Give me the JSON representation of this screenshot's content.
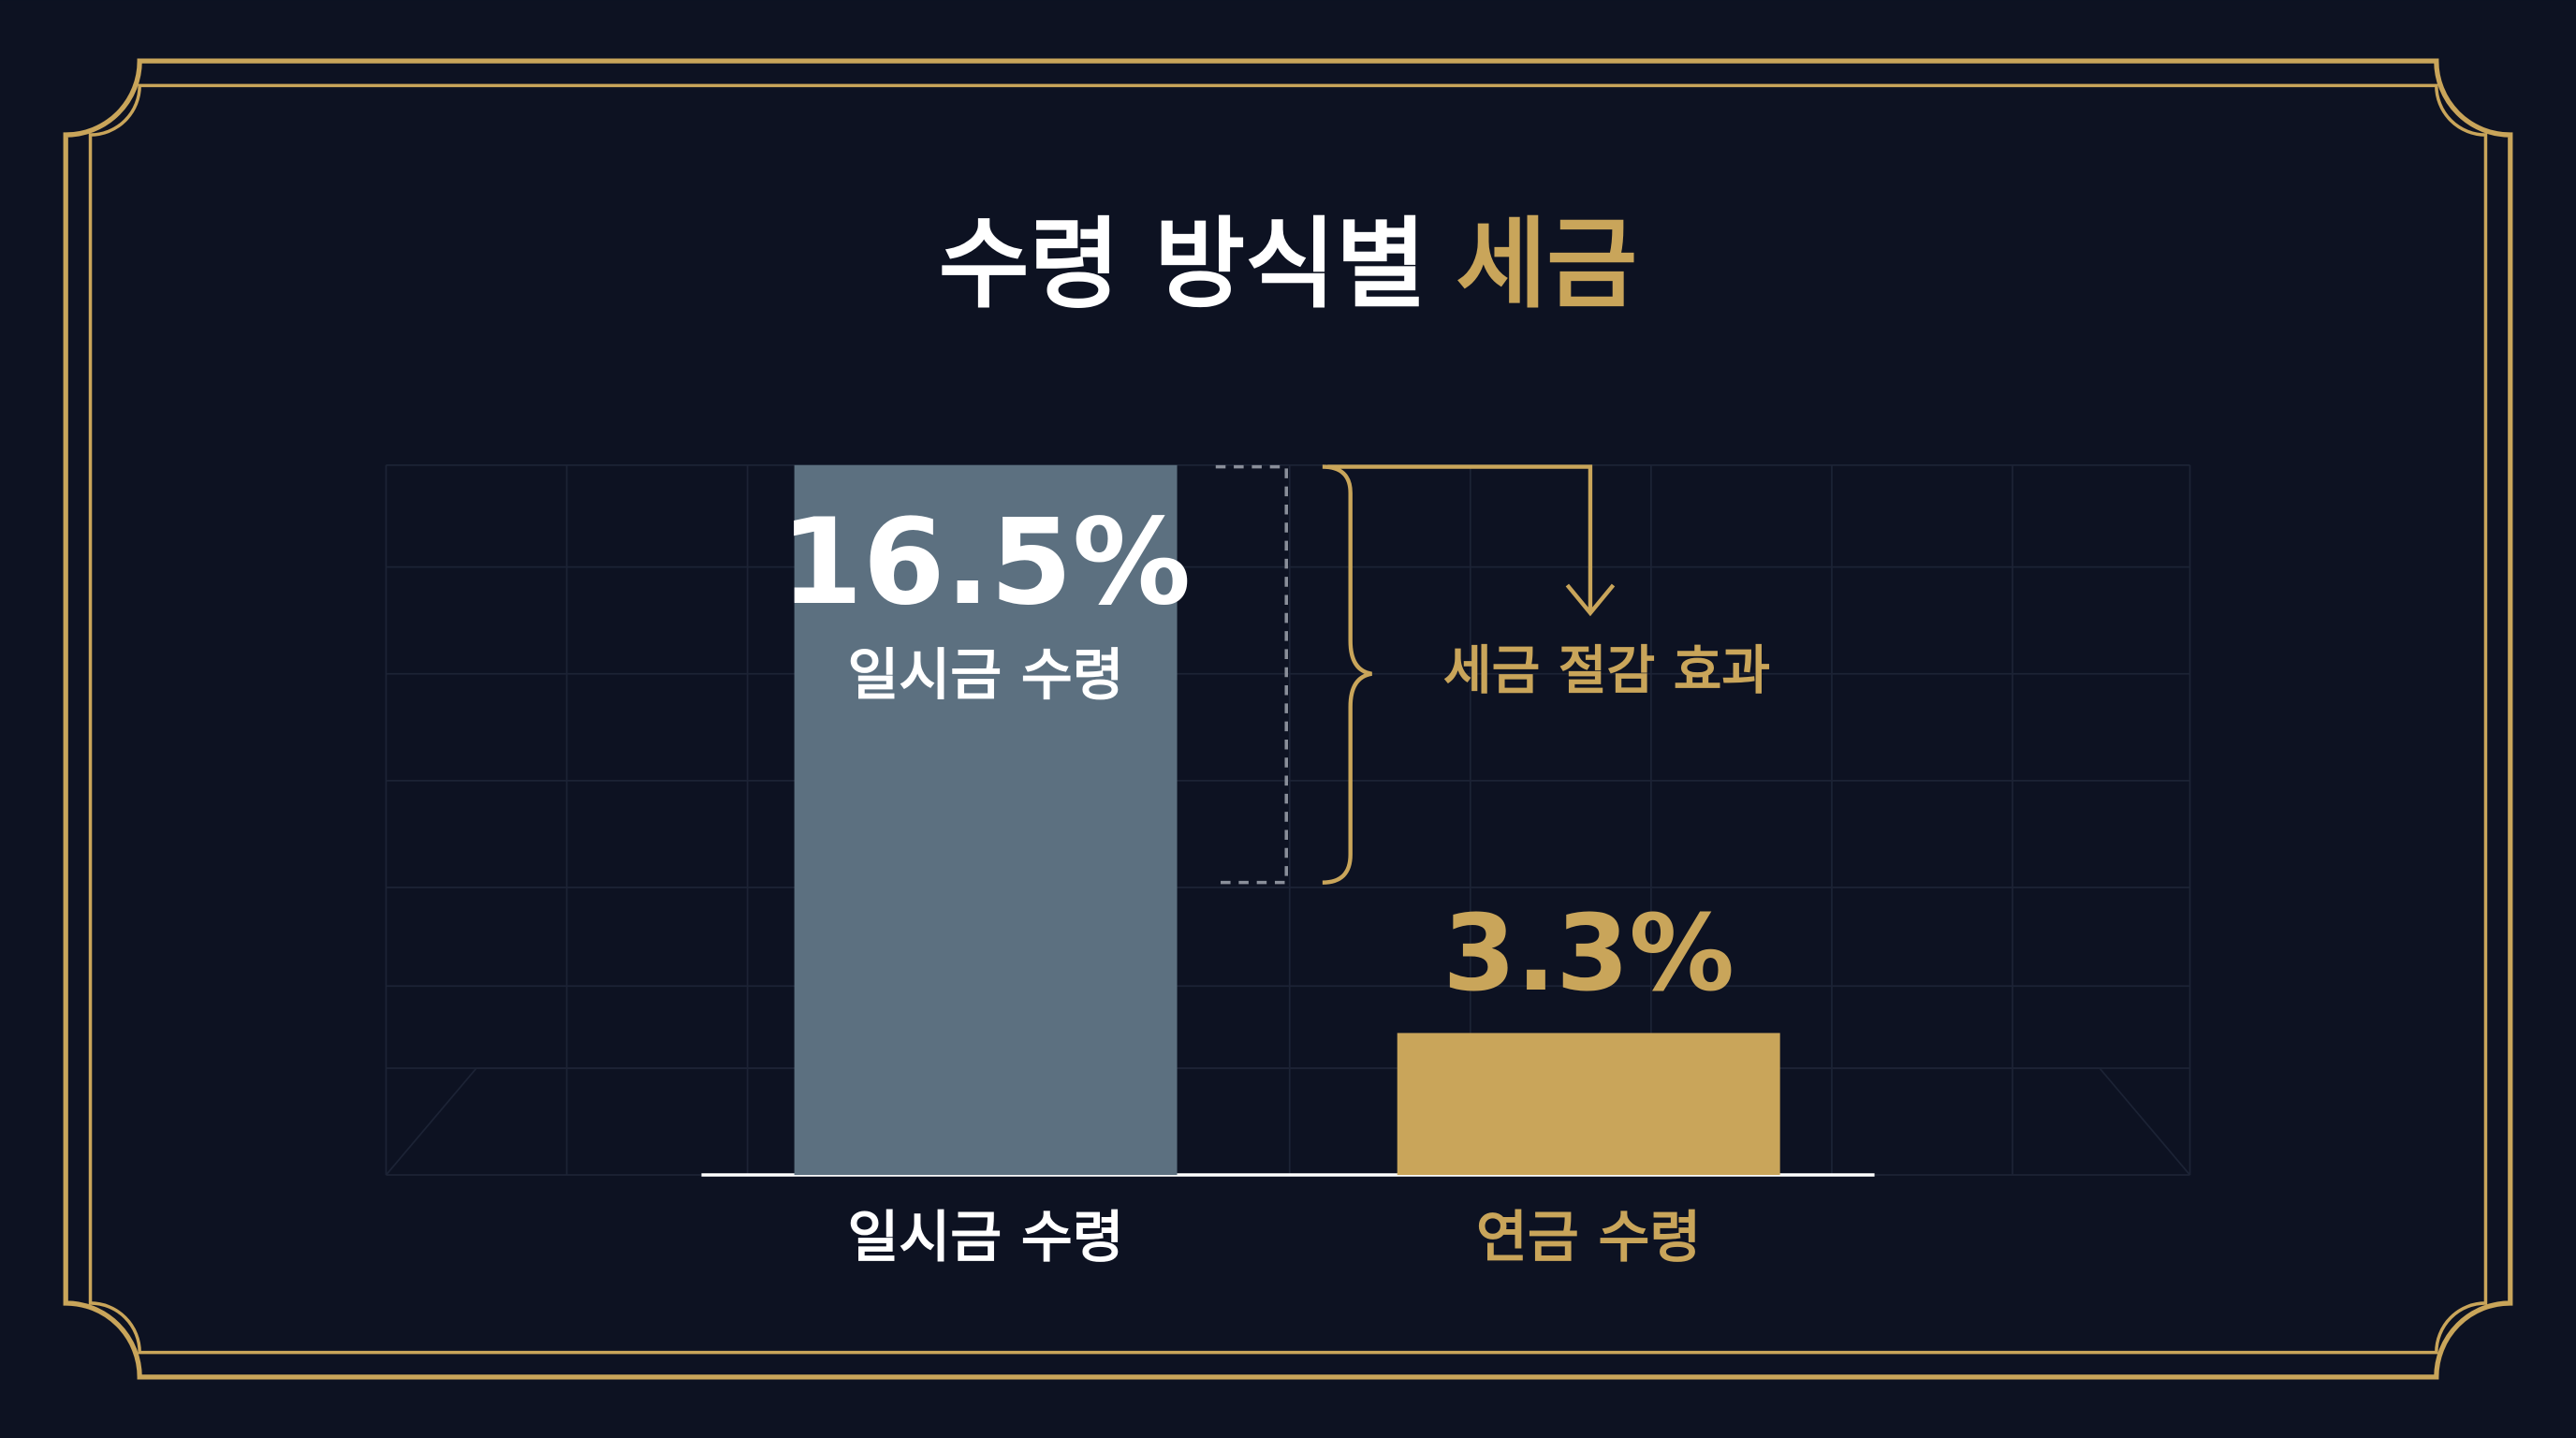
{
  "chart_data": {
    "type": "bar",
    "title": [
      "수령 방식별",
      "세금"
    ],
    "categories": [
      "일시금 수령",
      "연금 수령"
    ],
    "values": [
      16.5,
      3.3
    ],
    "value_labels": [
      "16.5%",
      "3.3%"
    ],
    "colors": [
      "#5c7080",
      "#c9a55a"
    ],
    "annotation": "세금 절감 효과"
  }
}
